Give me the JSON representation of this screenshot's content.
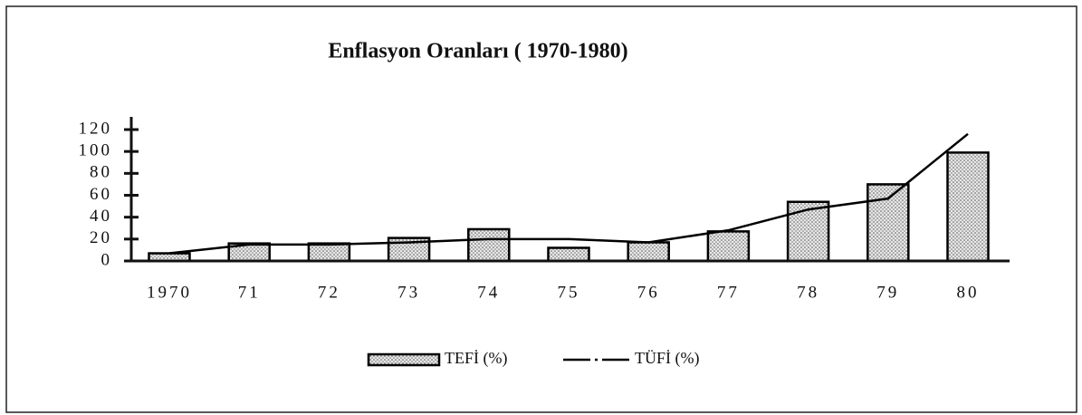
{
  "chart_data": {
    "type": "bar-line",
    "title": "Enflasyon Oranları ( 1970-1980)",
    "categories": [
      "1970",
      "71",
      "72",
      "73",
      "74",
      "75",
      "76",
      "77",
      "78",
      "79",
      "80"
    ],
    "series": [
      {
        "name": "TEFİ (%)",
        "type": "bar",
        "color": "#000000",
        "values": [
          7,
          16,
          16,
          21,
          29,
          12,
          17,
          27,
          54,
          70,
          99
        ]
      },
      {
        "name": "TÜFİ (%)",
        "type": "line",
        "color": "#000000",
        "values": [
          7,
          15,
          15,
          17,
          20,
          20,
          17,
          28,
          47,
          57,
          116
        ]
      }
    ],
    "ylim": [
      0,
      120
    ],
    "yticks": [
      0,
      20,
      40,
      60,
      80,
      100,
      120
    ],
    "grid": false,
    "legend": "bottom"
  }
}
